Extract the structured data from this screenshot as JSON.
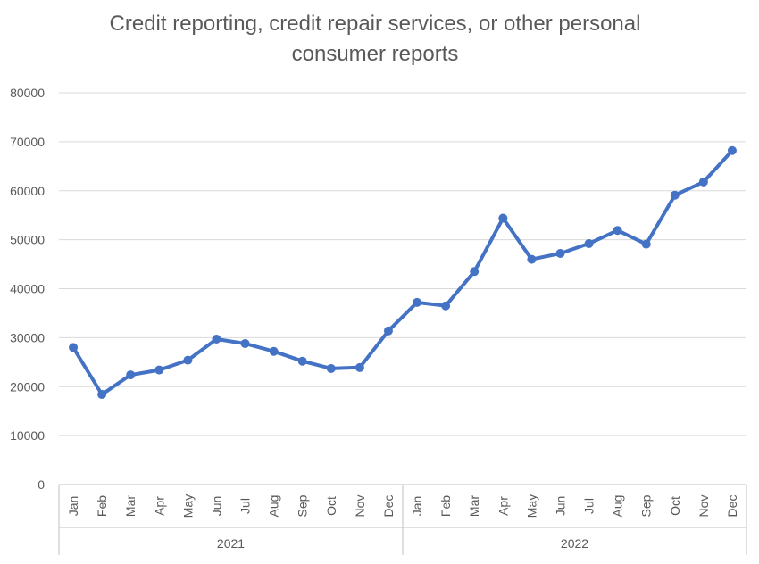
{
  "chart_data": {
    "type": "line",
    "title": "Credit reporting, credit repair services, or other personal consumer reports",
    "xlabel": "",
    "ylabel": "",
    "ylim": [
      0,
      80000
    ],
    "yticks": [
      0,
      10000,
      20000,
      30000,
      40000,
      50000,
      60000,
      70000,
      80000
    ],
    "grid": true,
    "legend": "none",
    "line_color": "#4472C4",
    "groups": [
      {
        "label": "2021",
        "categories": [
          "Jan",
          "Feb",
          "Mar",
          "Apr",
          "May",
          "Jun",
          "Jul",
          "Aug",
          "Sep",
          "Oct",
          "Nov",
          "Dec"
        ]
      },
      {
        "label": "2022",
        "categories": [
          "Jan",
          "Feb",
          "Mar",
          "Apr",
          "May",
          "Jun",
          "Jul",
          "Aug",
          "Sep",
          "Oct",
          "Nov",
          "Dec"
        ]
      }
    ],
    "series": [
      {
        "values": [
          28000,
          18400,
          22400,
          23400,
          25400,
          29700,
          28800,
          27200,
          25200,
          23700,
          23900,
          31400,
          37200,
          36500,
          43500,
          54400,
          46000,
          47200,
          49200,
          51900,
          49100,
          59100,
          61800,
          68200
        ]
      }
    ]
  }
}
